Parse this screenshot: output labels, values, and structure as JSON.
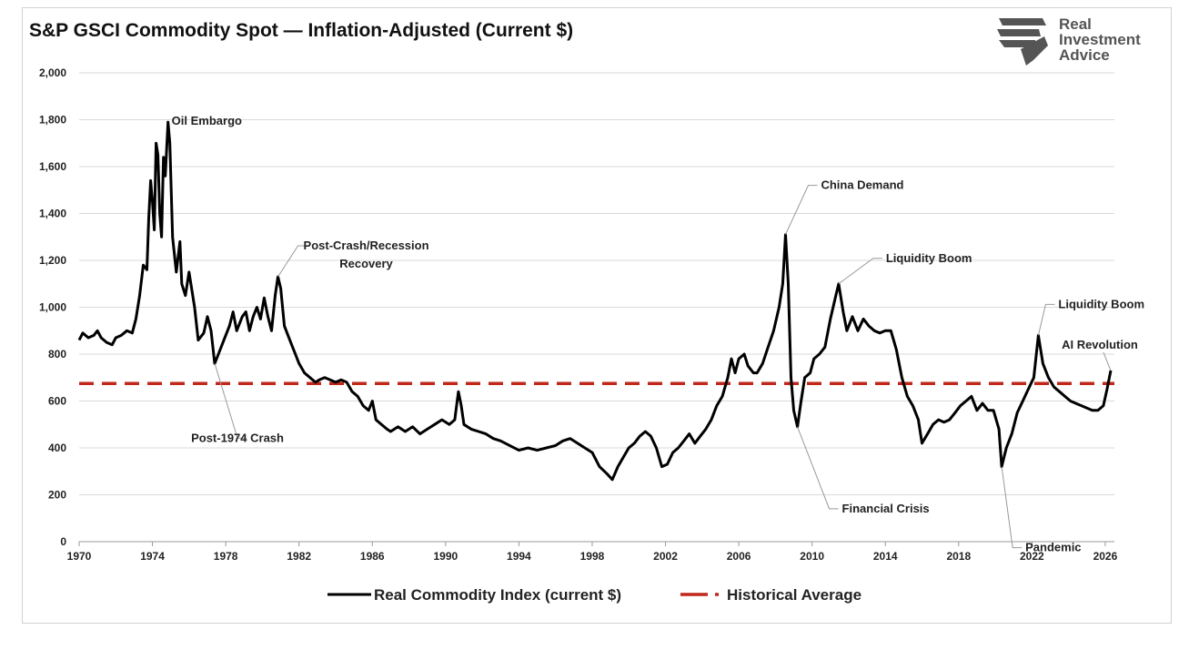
{
  "header": {
    "title": "S&P GSCI Commodity Spot — Inflation-Adjusted (Current $)",
    "logo_lines": [
      "Real",
      "Investment",
      "Advice"
    ],
    "logo_icon": "eagle-head-icon"
  },
  "colors": {
    "series": "#000000",
    "average": "#c0281c",
    "grid": "#d9d9d9"
  },
  "chart_data": {
    "type": "line",
    "title": "S&P GSCI Commodity Spot — Inflation-Adjusted (Current $)",
    "xlabel": "",
    "ylabel": "",
    "xlim": [
      1970,
      2026.5
    ],
    "ylim": [
      0,
      2000
    ],
    "x_ticks": [
      "1970",
      "1974",
      "1978",
      "1982",
      "1986",
      "1990",
      "1994",
      "1998",
      "2002",
      "2006",
      "2010",
      "2014",
      "2018",
      "2022",
      "2026"
    ],
    "y_ticks": [
      "0",
      "200",
      "400",
      "600",
      "800",
      "1,000",
      "1,200",
      "1,400",
      "1,600",
      "1,800",
      "2,000"
    ],
    "grid": "horizontal",
    "legend_position": "bottom",
    "series": [
      {
        "name": "Real Commodity Index (current $)",
        "points": [
          [
            1970,
            860
          ],
          [
            1970.2,
            890
          ],
          [
            1970.5,
            870
          ],
          [
            1970.8,
            880
          ],
          [
            1971,
            900
          ],
          [
            1971.2,
            870
          ],
          [
            1971.5,
            850
          ],
          [
            1971.8,
            840
          ],
          [
            1972,
            870
          ],
          [
            1972.3,
            880
          ],
          [
            1972.6,
            900
          ],
          [
            1972.9,
            890
          ],
          [
            1973.1,
            950
          ],
          [
            1973.3,
            1050
          ],
          [
            1973.5,
            1180
          ],
          [
            1973.7,
            1160
          ],
          [
            1973.8,
            1380
          ],
          [
            1973.9,
            1540
          ],
          [
            1974,
            1450
          ],
          [
            1974.1,
            1330
          ],
          [
            1974.2,
            1700
          ],
          [
            1974.3,
            1650
          ],
          [
            1974.4,
            1400
          ],
          [
            1974.5,
            1300
          ],
          [
            1974.6,
            1640
          ],
          [
            1974.7,
            1560
          ],
          [
            1974.85,
            1790
          ],
          [
            1974.95,
            1700
          ],
          [
            1975.1,
            1300
          ],
          [
            1975.3,
            1150
          ],
          [
            1975.5,
            1280
          ],
          [
            1975.6,
            1100
          ],
          [
            1975.8,
            1050
          ],
          [
            1976,
            1150
          ],
          [
            1976.3,
            1000
          ],
          [
            1976.5,
            860
          ],
          [
            1976.8,
            890
          ],
          [
            1977,
            960
          ],
          [
            1977.2,
            900
          ],
          [
            1977.4,
            760
          ],
          [
            1977.6,
            800
          ],
          [
            1977.9,
            860
          ],
          [
            1978.2,
            920
          ],
          [
            1978.4,
            980
          ],
          [
            1978.6,
            900
          ],
          [
            1978.9,
            960
          ],
          [
            1979.1,
            980
          ],
          [
            1979.3,
            900
          ],
          [
            1979.5,
            960
          ],
          [
            1979.7,
            1000
          ],
          [
            1979.9,
            950
          ],
          [
            1980.1,
            1040
          ],
          [
            1980.3,
            960
          ],
          [
            1980.5,
            900
          ],
          [
            1980.7,
            1050
          ],
          [
            1980.85,
            1130
          ],
          [
            1981,
            1080
          ],
          [
            1981.2,
            920
          ],
          [
            1981.4,
            880
          ],
          [
            1981.6,
            840
          ],
          [
            1981.8,
            800
          ],
          [
            1982,
            760
          ],
          [
            1982.3,
            720
          ],
          [
            1982.6,
            700
          ],
          [
            1982.9,
            680
          ],
          [
            1983.1,
            690
          ],
          [
            1983.4,
            700
          ],
          [
            1983.7,
            690
          ],
          [
            1984,
            680
          ],
          [
            1984.3,
            690
          ],
          [
            1984.6,
            680
          ],
          [
            1984.9,
            640
          ],
          [
            1985.2,
            620
          ],
          [
            1985.5,
            580
          ],
          [
            1985.8,
            560
          ],
          [
            1986,
            600
          ],
          [
            1986.2,
            520
          ],
          [
            1986.5,
            500
          ],
          [
            1986.8,
            480
          ],
          [
            1987,
            470
          ],
          [
            1987.4,
            490
          ],
          [
            1987.8,
            470
          ],
          [
            1988.2,
            490
          ],
          [
            1988.6,
            460
          ],
          [
            1989,
            480
          ],
          [
            1989.4,
            500
          ],
          [
            1989.8,
            520
          ],
          [
            1990.2,
            500
          ],
          [
            1990.5,
            520
          ],
          [
            1990.7,
            640
          ],
          [
            1990.85,
            580
          ],
          [
            1991,
            500
          ],
          [
            1991.4,
            480
          ],
          [
            1991.8,
            470
          ],
          [
            1992.2,
            460
          ],
          [
            1992.6,
            440
          ],
          [
            1993,
            430
          ],
          [
            1993.5,
            410
          ],
          [
            1994,
            390
          ],
          [
            1994.5,
            400
          ],
          [
            1995,
            390
          ],
          [
            1995.5,
            400
          ],
          [
            1996,
            410
          ],
          [
            1996.4,
            430
          ],
          [
            1996.8,
            440
          ],
          [
            1997.2,
            420
          ],
          [
            1997.6,
            400
          ],
          [
            1998,
            380
          ],
          [
            1998.4,
            320
          ],
          [
            1998.8,
            290
          ],
          [
            1999.1,
            265
          ],
          [
            1999.4,
            320
          ],
          [
            1999.7,
            360
          ],
          [
            2000,
            400
          ],
          [
            2000.3,
            420
          ],
          [
            2000.6,
            450
          ],
          [
            2000.9,
            470
          ],
          [
            2001.2,
            450
          ],
          [
            2001.5,
            400
          ],
          [
            2001.8,
            320
          ],
          [
            2002.1,
            330
          ],
          [
            2002.4,
            380
          ],
          [
            2002.7,
            400
          ],
          [
            2003,
            430
          ],
          [
            2003.3,
            460
          ],
          [
            2003.6,
            420
          ],
          [
            2003.9,
            450
          ],
          [
            2004.2,
            480
          ],
          [
            2004.5,
            520
          ],
          [
            2004.8,
            580
          ],
          [
            2005.1,
            620
          ],
          [
            2005.4,
            700
          ],
          [
            2005.6,
            780
          ],
          [
            2005.8,
            720
          ],
          [
            2006,
            780
          ],
          [
            2006.3,
            800
          ],
          [
            2006.5,
            750
          ],
          [
            2006.8,
            720
          ],
          [
            2007,
            720
          ],
          [
            2007.3,
            760
          ],
          [
            2007.6,
            830
          ],
          [
            2007.9,
            900
          ],
          [
            2008.2,
            1000
          ],
          [
            2008.4,
            1100
          ],
          [
            2008.55,
            1310
          ],
          [
            2008.7,
            1100
          ],
          [
            2008.85,
            700
          ],
          [
            2009,
            560
          ],
          [
            2009.2,
            490
          ],
          [
            2009.4,
            600
          ],
          [
            2009.6,
            700
          ],
          [
            2009.9,
            720
          ],
          [
            2010.1,
            780
          ],
          [
            2010.4,
            800
          ],
          [
            2010.7,
            830
          ],
          [
            2011,
            950
          ],
          [
            2011.3,
            1050
          ],
          [
            2011.45,
            1100
          ],
          [
            2011.7,
            980
          ],
          [
            2011.9,
            900
          ],
          [
            2012.2,
            960
          ],
          [
            2012.5,
            900
          ],
          [
            2012.8,
            950
          ],
          [
            2013.1,
            920
          ],
          [
            2013.4,
            900
          ],
          [
            2013.7,
            890
          ],
          [
            2014,
            900
          ],
          [
            2014.3,
            900
          ],
          [
            2014.6,
            820
          ],
          [
            2014.9,
            700
          ],
          [
            2015.2,
            620
          ],
          [
            2015.5,
            580
          ],
          [
            2015.8,
            520
          ],
          [
            2016,
            420
          ],
          [
            2016.3,
            460
          ],
          [
            2016.6,
            500
          ],
          [
            2016.9,
            520
          ],
          [
            2017.2,
            510
          ],
          [
            2017.5,
            520
          ],
          [
            2017.8,
            550
          ],
          [
            2018.1,
            580
          ],
          [
            2018.4,
            600
          ],
          [
            2018.7,
            620
          ],
          [
            2019,
            560
          ],
          [
            2019.3,
            590
          ],
          [
            2019.6,
            560
          ],
          [
            2019.9,
            560
          ],
          [
            2020.2,
            480
          ],
          [
            2020.35,
            320
          ],
          [
            2020.6,
            400
          ],
          [
            2020.9,
            460
          ],
          [
            2021.2,
            550
          ],
          [
            2021.5,
            600
          ],
          [
            2021.8,
            650
          ],
          [
            2022.1,
            700
          ],
          [
            2022.35,
            880
          ],
          [
            2022.6,
            760
          ],
          [
            2022.9,
            700
          ],
          [
            2023.2,
            660
          ],
          [
            2023.5,
            640
          ],
          [
            2023.8,
            620
          ],
          [
            2024.1,
            600
          ],
          [
            2024.4,
            590
          ],
          [
            2024.7,
            580
          ],
          [
            2025,
            570
          ],
          [
            2025.3,
            560
          ],
          [
            2025.6,
            560
          ],
          [
            2025.9,
            580
          ],
          [
            2026.1,
            650
          ],
          [
            2026.3,
            730
          ]
        ]
      },
      {
        "name": "Historical Average",
        "value": 675
      }
    ],
    "annotations": [
      {
        "text": "Oil Embargo",
        "x": 1974.85,
        "y": 1790
      },
      {
        "text": "Post-Crash/Recession",
        "text2": "Recovery",
        "x": 1980.85,
        "y": 1130
      },
      {
        "text": "Post-1974 Crash",
        "x": 1977.4,
        "y": 760
      },
      {
        "text": "China Demand",
        "x": 2008.55,
        "y": 1310
      },
      {
        "text": "Liquidity Boom",
        "x": 2011.45,
        "y": 1100
      },
      {
        "text": "Financial Crisis",
        "x": 2009.2,
        "y": 490
      },
      {
        "text": "Pandemic",
        "x": 2020.35,
        "y": 320
      },
      {
        "text": "Liquidity Boom",
        "x": 2022.35,
        "y": 880
      },
      {
        "text": "AI Revolution",
        "x": 2026.3,
        "y": 730
      }
    ]
  }
}
